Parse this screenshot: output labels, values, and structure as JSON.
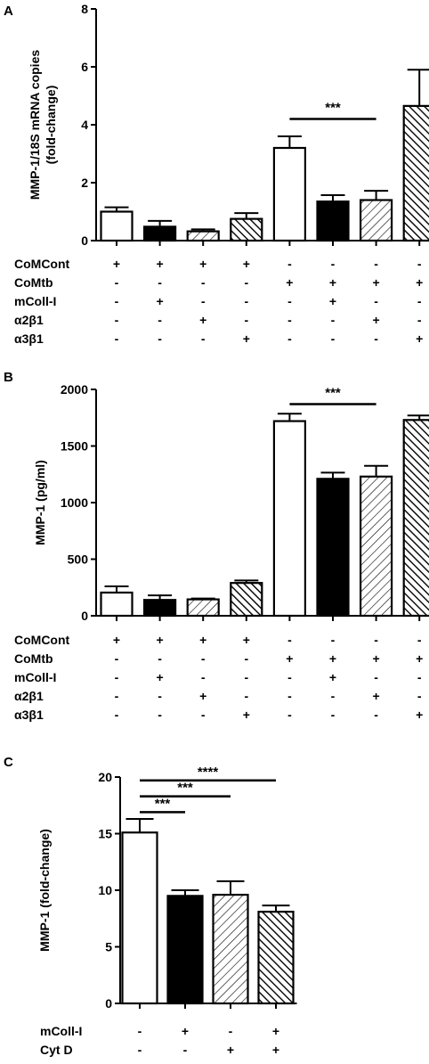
{
  "chart_data": [
    {
      "type": "bar",
      "panel": "A",
      "ylabel": [
        "MMP-1/18S mRNA copies",
        "(fold-change)"
      ],
      "ylim": [
        0,
        8
      ],
      "yticks": [
        0,
        2,
        4,
        6,
        8
      ],
      "values": [
        1.0,
        0.48,
        0.32,
        0.75,
        3.2,
        1.35,
        1.4,
        4.65
      ],
      "errors": [
        0.15,
        0.2,
        0.07,
        0.2,
        0.4,
        0.22,
        0.32,
        1.25
      ],
      "fills": [
        "white",
        "black",
        "light-hatch",
        "dark-hatch",
        "white",
        "black",
        "light-hatch",
        "dark-hatch"
      ],
      "significance": [
        {
          "from": 4,
          "to": 6,
          "y": 4.2,
          "label": "***"
        }
      ],
      "conditions": [
        {
          "label": "CoMCont",
          "marks": [
            "+",
            "+",
            "+",
            "+",
            "-",
            "-",
            "-",
            "-"
          ]
        },
        {
          "label": "CoMtb",
          "marks": [
            "-",
            "-",
            "-",
            "-",
            "+",
            "+",
            "+",
            "+"
          ]
        },
        {
          "label": "mColl-I",
          "marks": [
            "-",
            "+",
            "-",
            "-",
            "-",
            "+",
            "-",
            "-"
          ]
        },
        {
          "label": "α2β1",
          "marks": [
            "-",
            "-",
            "+",
            "-",
            "-",
            "-",
            "+",
            "-"
          ]
        },
        {
          "label": "α3β1",
          "marks": [
            "-",
            "-",
            "-",
            "+",
            "-",
            "-",
            "-",
            "+"
          ]
        }
      ]
    },
    {
      "type": "bar",
      "panel": "B",
      "ylabel": [
        "MMP-1 (pg/ml)"
      ],
      "ylim": [
        0,
        2000
      ],
      "yticks": [
        0,
        500,
        1000,
        1500,
        2000
      ],
      "values": [
        205,
        140,
        145,
        290,
        1720,
        1210,
        1230,
        1730
      ],
      "errors": [
        55,
        40,
        8,
        22,
        65,
        55,
        95,
        40
      ],
      "fills": [
        "white",
        "black",
        "light-hatch",
        "dark-hatch",
        "white",
        "black",
        "light-hatch",
        "dark-hatch"
      ],
      "significance": [
        {
          "from": 4,
          "to": 6,
          "y": 1870,
          "label": "***"
        }
      ],
      "conditions": [
        {
          "label": "CoMCont",
          "marks": [
            "+",
            "+",
            "+",
            "+",
            "-",
            "-",
            "-",
            "-"
          ]
        },
        {
          "label": "CoMtb",
          "marks": [
            "-",
            "-",
            "-",
            "-",
            "+",
            "+",
            "+",
            "+"
          ]
        },
        {
          "label": "mColl-I",
          "marks": [
            "-",
            "+",
            "-",
            "-",
            "-",
            "+",
            "-",
            "-"
          ]
        },
        {
          "label": "α2β1",
          "marks": [
            "-",
            "-",
            "+",
            "-",
            "-",
            "-",
            "+",
            "-"
          ]
        },
        {
          "label": "α3β1",
          "marks": [
            "-",
            "-",
            "-",
            "+",
            "-",
            "-",
            "-",
            "+"
          ]
        }
      ]
    },
    {
      "type": "bar",
      "panel": "C",
      "ylabel": [
        "MMP-1 (fold-change)"
      ],
      "ylim": [
        0,
        20
      ],
      "yticks": [
        0,
        5,
        10,
        15,
        20
      ],
      "values": [
        15.1,
        9.5,
        9.6,
        8.1
      ],
      "errors": [
        1.2,
        0.5,
        1.2,
        0.55
      ],
      "fills": [
        "white",
        "black",
        "light-hatch",
        "dark-hatch"
      ],
      "significance": [
        {
          "from": 0,
          "to": 1,
          "y": 16.9,
          "label": "***"
        },
        {
          "from": 0,
          "to": 2,
          "y": 18.3,
          "label": "***"
        },
        {
          "from": 0,
          "to": 3,
          "y": 19.7,
          "label": "****"
        }
      ],
      "conditions": [
        {
          "label": "mColl-I",
          "marks": [
            "-",
            "+",
            "-",
            "+"
          ]
        },
        {
          "label": "Cyt D",
          "marks": [
            "-",
            "-",
            "+",
            "+"
          ]
        }
      ]
    }
  ]
}
